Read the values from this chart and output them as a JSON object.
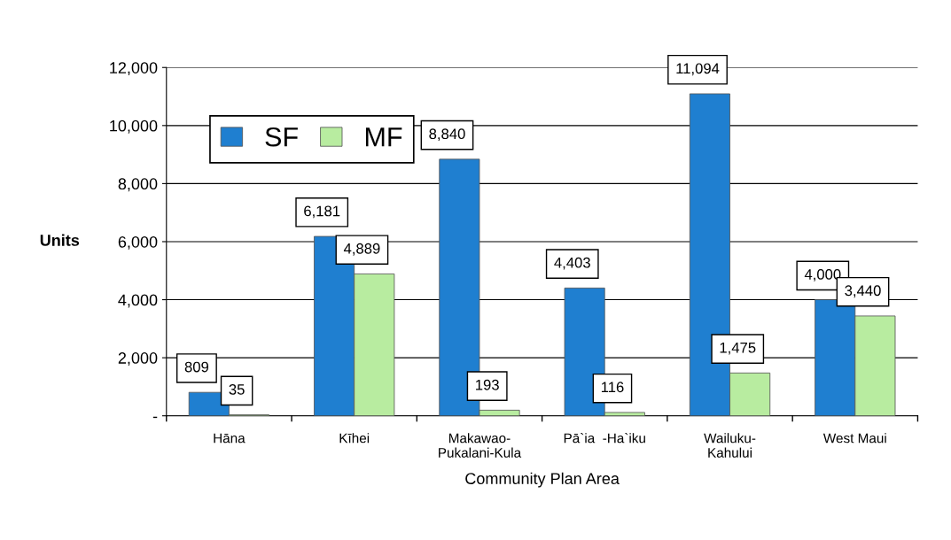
{
  "chart_data": {
    "type": "bar",
    "xlabel": "Community Plan Area",
    "ylabel": "Units",
    "categories": [
      "Hāna",
      "Kīhei",
      "Makawao-\nPukalani-Kula",
      "Pā`ia  -Ha`iku",
      "Wailuku-\nKahului",
      "West Maui"
    ],
    "series": [
      {
        "name": "SF",
        "color": "#1f7fd0",
        "values": [
          809,
          6181,
          8840,
          4403,
          11094,
          4000
        ],
        "value_labels": [
          "809",
          "6,181",
          "8,840",
          "4,403",
          "11,094",
          "4,000"
        ]
      },
      {
        "name": "MF",
        "color": "#b8eca0",
        "values": [
          35,
          4889,
          193,
          116,
          1475,
          3440
        ],
        "value_labels": [
          "35",
          "4,889",
          "193",
          "116",
          "1,475",
          "3,440"
        ]
      }
    ],
    "ylim": [
      0,
      12000
    ],
    "yticks": [
      {
        "value": 0,
        "label": "-"
      },
      {
        "value": 2000,
        "label": "2,000"
      },
      {
        "value": 4000,
        "label": "4,000"
      },
      {
        "value": 6000,
        "label": "6,000"
      },
      {
        "value": 8000,
        "label": "8,000"
      },
      {
        "value": 10000,
        "label": "10,000"
      },
      {
        "value": 12000,
        "label": "12,000"
      }
    ],
    "grid": "y",
    "legend": "top left"
  }
}
